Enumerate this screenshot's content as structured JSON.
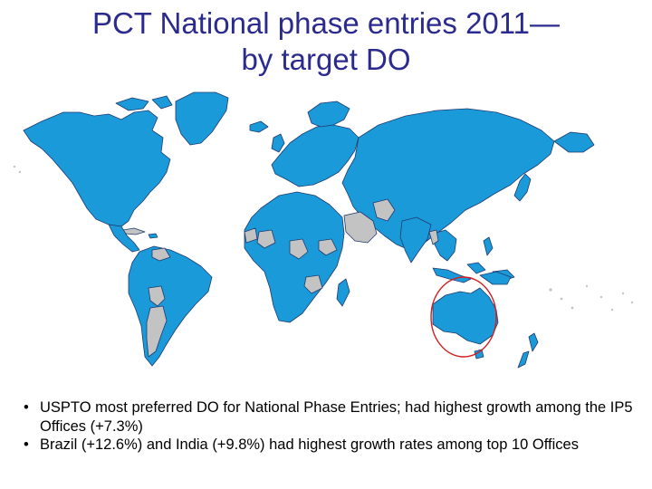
{
  "title": {
    "line1": "PCT National phase entries 2011—",
    "line2": "by target DO"
  },
  "map": {
    "highlight_region": "Australia",
    "colors": {
      "pct_member": "#1b9ad9",
      "non_member": "#c3c3c3",
      "border": "#1f3b70",
      "highlight": "#d21f1f"
    }
  },
  "bullets": [
    {
      "mark": "•",
      "text": "USPTO most preferred DO for National Phase Entries; had highest growth among the IP5 Offices (+7.3%)"
    },
    {
      "mark": "•",
      "text": "Brazil (+12.6%) and India (+9.8%) had highest growth rates among top 10 Offices"
    }
  ]
}
